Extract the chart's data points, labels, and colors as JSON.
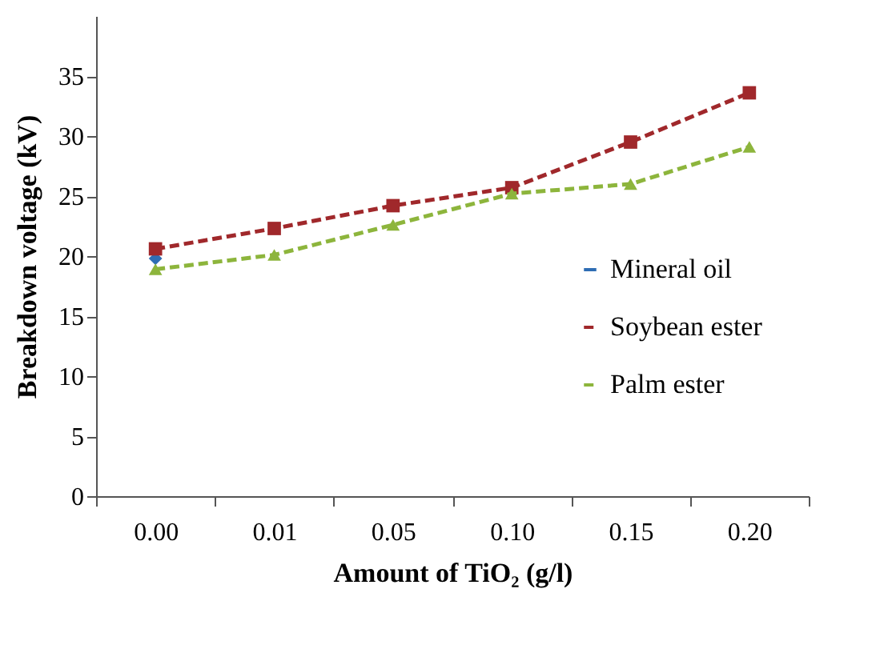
{
  "chart_data": {
    "type": "line",
    "xlabel": "Amount of TiO₂ (g/l)",
    "ylabel": "Breakdown voltage (kV)",
    "categories": [
      "0.00",
      "0.01",
      "0.05",
      "0.10",
      "0.15",
      "0.20"
    ],
    "series": [
      {
        "name": "Mineral oil",
        "color": "#2e6db4",
        "marker": "diamond",
        "line_style": "solid",
        "values": [
          19.8,
          null,
          null,
          null,
          null,
          null
        ]
      },
      {
        "name": "Soybean ester",
        "color": "#a0282b",
        "marker": "square",
        "line_style": "dashed",
        "values": [
          20.6,
          22.3,
          24.2,
          25.7,
          29.5,
          33.6
        ]
      },
      {
        "name": "Palm ester",
        "color": "#8db53c",
        "marker": "triangle",
        "line_style": "dashed",
        "values": [
          18.9,
          20.1,
          22.6,
          25.2,
          26.0,
          29.1
        ]
      }
    ],
    "ylim": [
      0,
      40
    ],
    "yticks": [
      0,
      5,
      10,
      15,
      20,
      25,
      30,
      35
    ],
    "legend": "right"
  }
}
